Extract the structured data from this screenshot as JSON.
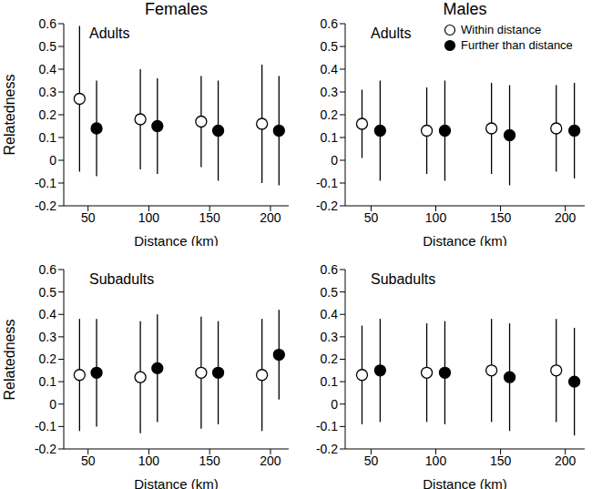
{
  "chart_data": [
    {
      "type": "scatter",
      "subtitle": "Females",
      "title": "Adults",
      "x_label": "Distance (km)",
      "y_label": "Relatedness",
      "xlim": [
        30,
        215
      ],
      "xticks": [
        50,
        100,
        150,
        200
      ],
      "ylim": [
        -0.2,
        0.6
      ],
      "yticks": [
        -0.2,
        -0.1,
        0,
        0.1,
        0.2,
        0.3,
        0.4,
        0.5,
        0.6
      ],
      "series": [
        {
          "name": "Within distance",
          "color": "#000000",
          "marker": "open_circle",
          "x": [
            43,
            93,
            143,
            193
          ],
          "values": [
            0.27,
            0.18,
            0.17,
            0.16
          ],
          "lower": [
            -0.05,
            -0.04,
            -0.03,
            -0.1
          ],
          "upper": [
            0.59,
            0.4,
            0.37,
            0.42
          ]
        },
        {
          "name": "Further than distance",
          "color": "#000000",
          "marker": "filled_circle",
          "x": [
            57,
            107,
            157,
            207
          ],
          "values": [
            0.14,
            0.15,
            0.13,
            0.13
          ],
          "lower": [
            -0.07,
            -0.06,
            -0.09,
            -0.11
          ],
          "upper": [
            0.35,
            0.36,
            0.35,
            0.37
          ]
        }
      ]
    },
    {
      "type": "scatter",
      "subtitle": "Males",
      "title": "Adults",
      "x_label": "Distance (km)",
      "legend": "top-right",
      "xlim": [
        30,
        215
      ],
      "xticks": [
        50,
        100,
        150,
        200
      ],
      "ylim": [
        -0.2,
        0.6
      ],
      "yticks": [
        -0.2,
        -0.1,
        0,
        0.1,
        0.2,
        0.3,
        0.4,
        0.5,
        0.6
      ],
      "series": [
        {
          "name": "Within distance",
          "color": "#000000",
          "marker": "open_circle",
          "x": [
            43,
            93,
            143,
            193
          ],
          "values": [
            0.16,
            0.13,
            0.14,
            0.14
          ],
          "lower": [
            0.01,
            -0.06,
            -0.06,
            -0.05
          ],
          "upper": [
            0.31,
            0.32,
            0.34,
            0.33
          ]
        },
        {
          "name": "Further than distance",
          "color": "#000000",
          "marker": "filled_circle",
          "x": [
            57,
            107,
            157,
            207
          ],
          "values": [
            0.13,
            0.13,
            0.11,
            0.13
          ],
          "lower": [
            -0.09,
            -0.09,
            -0.11,
            -0.08
          ],
          "upper": [
            0.35,
            0.35,
            0.33,
            0.34
          ]
        }
      ]
    },
    {
      "type": "scatter",
      "title": "Subadults",
      "x_label": "Distance (km)",
      "y_label": "Relatedness",
      "xlim": [
        30,
        215
      ],
      "xticks": [
        50,
        100,
        150,
        200
      ],
      "ylim": [
        -0.2,
        0.6
      ],
      "yticks": [
        -0.2,
        -0.1,
        0,
        0.1,
        0.2,
        0.3,
        0.4,
        0.5,
        0.6
      ],
      "series": [
        {
          "name": "Within distance",
          "color": "#000000",
          "marker": "open_circle",
          "x": [
            43,
            93,
            143,
            193
          ],
          "values": [
            0.13,
            0.12,
            0.14,
            0.13
          ],
          "lower": [
            -0.12,
            -0.13,
            -0.11,
            -0.12
          ],
          "upper": [
            0.38,
            0.37,
            0.39,
            0.38
          ]
        },
        {
          "name": "Further than distance",
          "color": "#000000",
          "marker": "filled_circle",
          "x": [
            57,
            107,
            157,
            207
          ],
          "values": [
            0.14,
            0.16,
            0.14,
            0.22
          ],
          "lower": [
            -0.1,
            -0.08,
            -0.09,
            0.02
          ],
          "upper": [
            0.38,
            0.4,
            0.37,
            0.42
          ]
        }
      ]
    },
    {
      "type": "scatter",
      "title": "Subadults",
      "x_label": "Distance (km)",
      "xlim": [
        30,
        215
      ],
      "xticks": [
        50,
        100,
        150,
        200
      ],
      "ylim": [
        -0.2,
        0.6
      ],
      "yticks": [
        -0.2,
        -0.1,
        0,
        0.1,
        0.2,
        0.3,
        0.4,
        0.5,
        0.6
      ],
      "series": [
        {
          "name": "Within distance",
          "color": "#000000",
          "marker": "open_circle",
          "x": [
            43,
            93,
            143,
            193
          ],
          "values": [
            0.13,
            0.14,
            0.15,
            0.15
          ],
          "lower": [
            -0.09,
            -0.08,
            -0.08,
            -0.08
          ],
          "upper": [
            0.35,
            0.36,
            0.38,
            0.38
          ]
        },
        {
          "name": "Further than distance",
          "color": "#000000",
          "marker": "filled_circle",
          "x": [
            57,
            107,
            157,
            207
          ],
          "values": [
            0.15,
            0.14,
            0.12,
            0.1
          ],
          "lower": [
            -0.08,
            -0.09,
            -0.12,
            -0.14
          ],
          "upper": [
            0.38,
            0.37,
            0.36,
            0.34
          ]
        }
      ]
    }
  ]
}
